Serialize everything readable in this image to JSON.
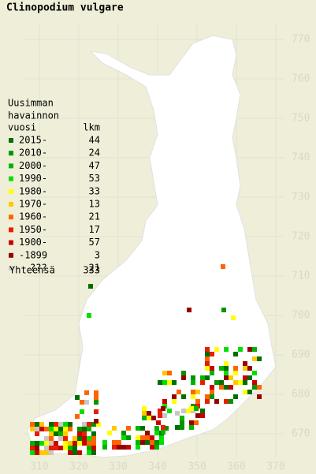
{
  "title": "Clinopodium vulgare",
  "legend": {
    "heading": [
      "Uusimman",
      "havainnon"
    ],
    "col_year": "vuosi",
    "col_count": "lkm",
    "rows": [
      {
        "label": "2015-",
        "count": 44,
        "color": "#006e00"
      },
      {
        "label": "2010-",
        "count": 24,
        "color": "#009400"
      },
      {
        "label": "2000-",
        "count": 47,
        "color": "#00b400"
      },
      {
        "label": "1990-",
        "count": 53,
        "color": "#00e000"
      },
      {
        "label": "1980-",
        "count": 33,
        "color": "#ffff00"
      },
      {
        "label": "1970-",
        "count": 13,
        "color": "#ffc800"
      },
      {
        "label": "1960-",
        "count": 21,
        "color": "#ff6400"
      },
      {
        "label": "1950-",
        "count": 17,
        "color": "#e81e00"
      },
      {
        "label": "1900-",
        "count": 57,
        "color": "#c80000"
      },
      {
        "label": "-1899",
        "count": 3,
        "color": "#960000"
      },
      {
        "label": "???",
        "count": 21,
        "color": "#c8c8c8"
      }
    ],
    "total_label": "Yhteensä",
    "total": 333
  },
  "x_labels": [
    "310",
    "320",
    "330",
    "340",
    "350",
    "360",
    "370"
  ],
  "y_labels": [
    "770",
    "760",
    "750",
    "740",
    "730",
    "720",
    "710",
    "700",
    "690",
    "680",
    "670"
  ]
}
